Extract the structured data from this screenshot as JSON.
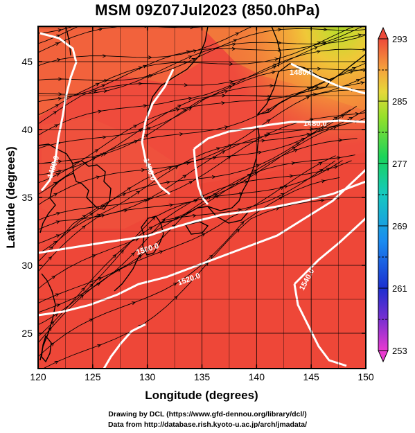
{
  "title": "MSM 09Z07Jul2023 (850.0hPa)",
  "x_axis": {
    "label": "Longitude (degrees)",
    "min": 120,
    "max": 150,
    "ticks": [
      "120",
      "125",
      "130",
      "135",
      "140",
      "145",
      "150"
    ]
  },
  "y_axis": {
    "label": "Latitude (degrees)",
    "min": 22.4,
    "max": 47.6,
    "ticks": [
      "25",
      "30",
      "35",
      "40",
      "45"
    ]
  },
  "colorbar": {
    "min": 253,
    "max": 293,
    "labels": [
      "293",
      "285",
      "277",
      "269",
      "261",
      "253"
    ]
  },
  "contour_labels": [
    "1480.0",
    "1480.0",
    "1480.0",
    "1480.0",
    "1500.0",
    "1520.0",
    "1540.0"
  ],
  "credits": {
    "line1": "Drawing by DCL (https://www.gfd-dennou.org/library/dcl/)",
    "line2": "Data from http://database.rish.kyoto-u.ac.jp/arch/jmadata/"
  },
  "colors": {
    "field_base": "#ef4a3b",
    "field_warm": "#f0553f",
    "field_orange": "#f47a38",
    "field_yellow": "#e8c23a",
    "field_green": "#a6e02a",
    "contour": "#ffffff",
    "coast": "#000000"
  }
}
